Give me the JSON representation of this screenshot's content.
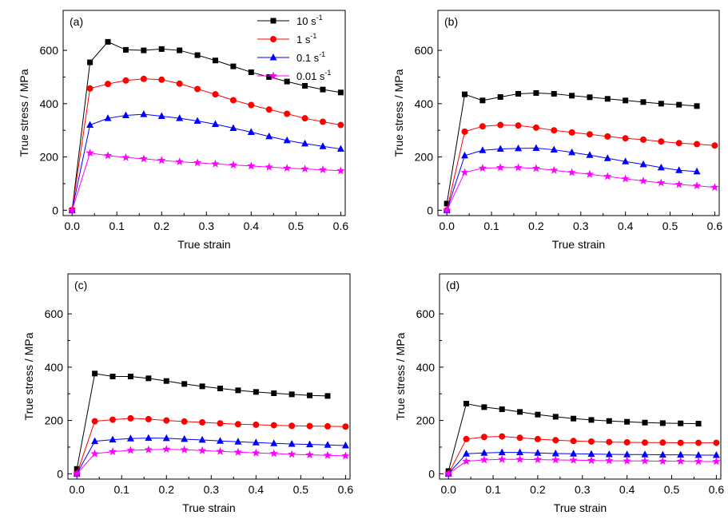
{
  "figure": {
    "legend": [
      {
        "base": "10 s",
        "sup": "-1"
      },
      {
        "base": "1 s",
        "sup": "-1"
      },
      {
        "base": "0.1 s",
        "sup": "-1"
      },
      {
        "base": "0.01 s",
        "sup": "-1"
      }
    ],
    "colors": [
      "#000000",
      "#ff0000",
      "#0000ff",
      "#ff00ff"
    ],
    "markers": [
      "square",
      "circle",
      "triangle",
      "star"
    ]
  },
  "chart_data": [
    {
      "type": "line",
      "panel_label": "(a)",
      "xlabel": "True strain",
      "ylabel": "True stress / MPa",
      "xlim": [
        -0.02,
        0.61
      ],
      "ylim": [
        -20,
        750
      ],
      "xticks": [
        "0.0",
        "0.1",
        "0.2",
        "0.3",
        "0.4",
        "0.5",
        "0.6"
      ],
      "yticks": [
        "0",
        "200",
        "400",
        "600"
      ],
      "legend_position": "top-right",
      "series": [
        {
          "name": "10 s-1",
          "x": [
            0,
            0.04,
            0.08,
            0.12,
            0.16,
            0.2,
            0.24,
            0.28,
            0.32,
            0.36,
            0.4,
            0.44,
            0.48,
            0.52,
            0.56,
            0.6
          ],
          "y": [
            0,
            555,
            632,
            602,
            600,
            605,
            600,
            582,
            562,
            540,
            518,
            500,
            483,
            467,
            453,
            442
          ]
        },
        {
          "name": "1 s-1",
          "x": [
            0,
            0.04,
            0.08,
            0.12,
            0.16,
            0.2,
            0.24,
            0.28,
            0.32,
            0.36,
            0.4,
            0.44,
            0.48,
            0.52,
            0.56,
            0.6
          ],
          "y": [
            0,
            457,
            474,
            487,
            493,
            490,
            475,
            455,
            435,
            413,
            395,
            378,
            362,
            345,
            332,
            320
          ]
        },
        {
          "name": "0.1 s-1",
          "x": [
            0,
            0.04,
            0.08,
            0.12,
            0.16,
            0.2,
            0.24,
            0.28,
            0.32,
            0.36,
            0.4,
            0.44,
            0.48,
            0.52,
            0.56,
            0.6
          ],
          "y": [
            0,
            320,
            345,
            356,
            360,
            353,
            345,
            335,
            323,
            308,
            293,
            277,
            262,
            250,
            240,
            230
          ]
        },
        {
          "name": "0.01 s-1",
          "x": [
            0,
            0.04,
            0.08,
            0.12,
            0.16,
            0.2,
            0.24,
            0.28,
            0.32,
            0.36,
            0.4,
            0.44,
            0.48,
            0.52,
            0.56,
            0.6
          ],
          "y": [
            0,
            215,
            205,
            198,
            193,
            187,
            182,
            178,
            174,
            170,
            166,
            162,
            158,
            155,
            152,
            148
          ]
        }
      ]
    },
    {
      "type": "line",
      "panel_label": "(b)",
      "xlabel": "True strain",
      "ylabel": "True stress / MPa",
      "xlim": [
        -0.02,
        0.61
      ],
      "ylim": [
        -20,
        750
      ],
      "xticks": [
        "0.0",
        "0.1",
        "0.2",
        "0.3",
        "0.4",
        "0.5",
        "0.6"
      ],
      "yticks": [
        "0",
        "200",
        "400",
        "600"
      ],
      "series": [
        {
          "name": "10 s-1",
          "x": [
            0,
            0.04,
            0.08,
            0.12,
            0.16,
            0.2,
            0.24,
            0.28,
            0.32,
            0.36,
            0.4,
            0.44,
            0.48,
            0.52,
            0.56
          ],
          "y": [
            25,
            435,
            412,
            425,
            437,
            440,
            437,
            430,
            424,
            418,
            412,
            406,
            400,
            396,
            391
          ]
        },
        {
          "name": "1 s-1",
          "x": [
            0,
            0.04,
            0.08,
            0.12,
            0.16,
            0.2,
            0.24,
            0.28,
            0.32,
            0.36,
            0.4,
            0.44,
            0.48,
            0.52,
            0.56,
            0.6
          ],
          "y": [
            0,
            295,
            315,
            320,
            318,
            310,
            300,
            292,
            285,
            277,
            270,
            265,
            258,
            252,
            248,
            243
          ]
        },
        {
          "name": "0.1 s-1",
          "x": [
            0,
            0.04,
            0.08,
            0.12,
            0.16,
            0.2,
            0.24,
            0.28,
            0.32,
            0.36,
            0.4,
            0.44,
            0.48,
            0.52,
            0.56
          ],
          "y": [
            0,
            205,
            225,
            230,
            232,
            233,
            227,
            217,
            207,
            195,
            183,
            172,
            160,
            150,
            145
          ]
        },
        {
          "name": "0.01 s-1",
          "x": [
            0,
            0.04,
            0.08,
            0.12,
            0.16,
            0.2,
            0.24,
            0.28,
            0.32,
            0.36,
            0.4,
            0.44,
            0.48,
            0.52,
            0.56,
            0.6
          ],
          "y": [
            0,
            142,
            158,
            160,
            160,
            157,
            150,
            142,
            135,
            127,
            118,
            110,
            103,
            97,
            92,
            86
          ]
        }
      ]
    },
    {
      "type": "line",
      "panel_label": "(c)",
      "xlabel": "True strain",
      "ylabel": "True stress / MPa",
      "xlim": [
        -0.02,
        0.61
      ],
      "ylim": [
        -20,
        750
      ],
      "xticks": [
        "0.0",
        "0.1",
        "0.2",
        "0.3",
        "0.4",
        "0.5",
        "0.6"
      ],
      "yticks": [
        "0",
        "200",
        "400",
        "600"
      ],
      "series": [
        {
          "name": "10 s-1",
          "x": [
            0,
            0.04,
            0.08,
            0.12,
            0.16,
            0.2,
            0.24,
            0.28,
            0.32,
            0.36,
            0.4,
            0.44,
            0.48,
            0.52,
            0.56
          ],
          "y": [
            18,
            376,
            365,
            365,
            358,
            348,
            337,
            328,
            320,
            313,
            307,
            302,
            298,
            294,
            292
          ]
        },
        {
          "name": "1 s-1",
          "x": [
            0,
            0.04,
            0.08,
            0.12,
            0.16,
            0.2,
            0.24,
            0.28,
            0.32,
            0.36,
            0.4,
            0.44,
            0.48,
            0.52,
            0.56,
            0.6
          ],
          "y": [
            0,
            197,
            203,
            208,
            205,
            200,
            196,
            193,
            189,
            186,
            184,
            182,
            180,
            179,
            178,
            177
          ]
        },
        {
          "name": "0.1 s-1",
          "x": [
            0,
            0.04,
            0.08,
            0.12,
            0.16,
            0.2,
            0.24,
            0.28,
            0.32,
            0.36,
            0.4,
            0.44,
            0.48,
            0.52,
            0.56,
            0.6
          ],
          "y": [
            0,
            122,
            128,
            132,
            134,
            133,
            130,
            127,
            123,
            120,
            117,
            114,
            112,
            110,
            108,
            106
          ]
        },
        {
          "name": "0.01 s-1",
          "x": [
            0,
            0.04,
            0.08,
            0.12,
            0.16,
            0.2,
            0.24,
            0.28,
            0.32,
            0.36,
            0.4,
            0.44,
            0.48,
            0.52,
            0.56,
            0.6
          ],
          "y": [
            0,
            75,
            83,
            88,
            90,
            92,
            90,
            87,
            84,
            81,
            78,
            76,
            73,
            71,
            69,
            67
          ]
        }
      ]
    },
    {
      "type": "line",
      "panel_label": "(d)",
      "xlabel": "True strain",
      "ylabel": "True stress / MPa",
      "xlim": [
        -0.02,
        0.61
      ],
      "ylim": [
        -20,
        750
      ],
      "xticks": [
        "0.0",
        "0.1",
        "0.2",
        "0.3",
        "0.4",
        "0.5",
        "0.6"
      ],
      "yticks": [
        "0",
        "200",
        "400",
        "600"
      ],
      "series": [
        {
          "name": "10 s-1",
          "x": [
            0,
            0.04,
            0.08,
            0.12,
            0.16,
            0.2,
            0.24,
            0.28,
            0.32,
            0.36,
            0.4,
            0.44,
            0.48,
            0.52,
            0.56
          ],
          "y": [
            10,
            263,
            250,
            242,
            232,
            222,
            214,
            207,
            202,
            198,
            195,
            192,
            190,
            189,
            188
          ]
        },
        {
          "name": "1 s-1",
          "x": [
            0,
            0.04,
            0.08,
            0.12,
            0.16,
            0.2,
            0.24,
            0.28,
            0.32,
            0.36,
            0.4,
            0.44,
            0.48,
            0.52,
            0.56,
            0.6
          ],
          "y": [
            0,
            130,
            138,
            140,
            135,
            130,
            126,
            123,
            121,
            119,
            118,
            117,
            117,
            116,
            116,
            116
          ]
        },
        {
          "name": "0.1 s-1",
          "x": [
            0,
            0.04,
            0.08,
            0.12,
            0.16,
            0.2,
            0.24,
            0.28,
            0.32,
            0.36,
            0.4,
            0.44,
            0.48,
            0.52,
            0.56,
            0.6
          ],
          "y": [
            0,
            75,
            78,
            80,
            80,
            78,
            76,
            75,
            74,
            73,
            72,
            72,
            71,
            71,
            70,
            70
          ]
        },
        {
          "name": "0.01 s-1",
          "x": [
            0,
            0.04,
            0.08,
            0.12,
            0.16,
            0.2,
            0.24,
            0.28,
            0.32,
            0.36,
            0.4,
            0.44,
            0.48,
            0.52,
            0.56,
            0.6
          ],
          "y": [
            0,
            47,
            52,
            54,
            54,
            53,
            52,
            51,
            50,
            49,
            48,
            48,
            47,
            47,
            46,
            46
          ]
        }
      ]
    }
  ]
}
